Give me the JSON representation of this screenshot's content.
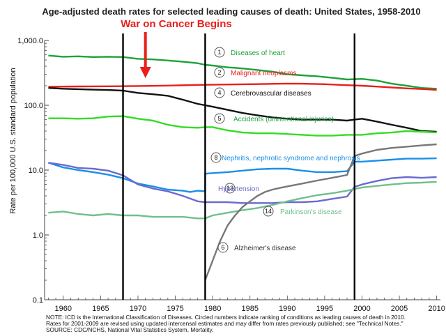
{
  "chart_data": {
    "type": "line",
    "title": "Age-adjusted death rates for selected leading causes of death: United States, 1958-2010",
    "annotation": "War on Cancer Begins",
    "ylabel": "Rate per 100,000 U.S. standard population",
    "xlabel": "",
    "xlim": [
      1957.5,
      2010.5
    ],
    "ylim": [
      0.1,
      1000
    ],
    "yscale": "log",
    "x_ticks": [
      1960,
      1965,
      1970,
      1975,
      1980,
      1985,
      1990,
      1995,
      2000,
      2005,
      2010
    ],
    "y_ticks": [
      {
        "value": 1000,
        "label": "1,000.0"
      },
      {
        "value": 100,
        "label": "100.0"
      },
      {
        "value": 10,
        "label": "10.0"
      },
      {
        "value": 1,
        "label": "1.0"
      },
      {
        "value": 0.1,
        "label": "0.1"
      }
    ],
    "vlines": [
      1968,
      1979,
      1999
    ],
    "arrow_year": 1971,
    "series": [
      {
        "name": "Diseases of heart",
        "rank": "1",
        "color": "#1ea23c",
        "x": [
          1958,
          1960,
          1962,
          1964,
          1966,
          1968,
          1970,
          1972,
          1974,
          1976,
          1978,
          1979,
          1980,
          1982,
          1984,
          1986,
          1988,
          1990,
          1992,
          1994,
          1996,
          1998,
          2000,
          2002,
          2004,
          2006,
          2008,
          2010
        ],
        "y": [
          585,
          560,
          568,
          555,
          560,
          555,
          520,
          510,
          490,
          470,
          445,
          420,
          410,
          385,
          370,
          350,
          330,
          300,
          290,
          280,
          265,
          250,
          255,
          240,
          215,
          200,
          185,
          180
        ]
      },
      {
        "name": "Malignant neoplasms",
        "rank": "2",
        "color": "#e8201b",
        "x": [
          1958,
          1962,
          1966,
          1970,
          1974,
          1978,
          1982,
          1986,
          1990,
          1992,
          1995,
          1998,
          2000,
          2002,
          2004,
          2006,
          2008,
          2010
        ],
        "y": [
          193,
          195,
          196,
          198,
          201,
          206,
          209,
          212,
          216,
          215,
          211,
          204,
          200,
          194,
          188,
          182,
          178,
          173
        ]
      },
      {
        "name": "Cerebrovascular diseases",
        "rank": "4",
        "color": "#111111",
        "x": [
          1958,
          1960,
          1962,
          1964,
          1966,
          1968,
          1970,
          1972,
          1974,
          1976,
          1978,
          1979,
          1980,
          1982,
          1984,
          1986,
          1988,
          1990,
          1992,
          1994,
          1996,
          1998,
          1999,
          2000,
          2002,
          2004,
          2006,
          2008,
          2010
        ],
        "y": [
          185,
          180,
          177,
          174,
          172,
          168,
          155,
          148,
          140,
          122,
          105,
          100,
          95,
          85,
          76,
          70,
          65,
          62,
          60,
          60,
          60,
          58,
          60,
          62,
          56,
          50,
          45,
          40,
          39
        ]
      },
      {
        "name": "Accidents (unintentional injuries)",
        "rank": "5",
        "color": "#33dd22",
        "x": [
          1958,
          1960,
          1962,
          1964,
          1966,
          1968,
          1970,
          1972,
          1974,
          1976,
          1978,
          1979,
          1980,
          1982,
          1984,
          1986,
          1988,
          1990,
          1992,
          1994,
          1996,
          1998,
          2000,
          2002,
          2004,
          2006,
          2008,
          2010
        ],
        "y": [
          63,
          63,
          62,
          63,
          67,
          68,
          62,
          58,
          50,
          46,
          45,
          46,
          46,
          41,
          38,
          37,
          37,
          36,
          35,
          34,
          34,
          35,
          35,
          37,
          38,
          40,
          39,
          38
        ]
      },
      {
        "name": "Nephritis, nephrotic syndrome and nephrosis",
        "rank": "8",
        "color": "#1b8fe8",
        "x": [
          1958,
          1960,
          1962,
          1964,
          1966,
          1968,
          1970,
          1972,
          1974,
          1976,
          1977,
          1978,
          1979,
          1979.01,
          1980,
          1982,
          1984,
          1986,
          1988,
          1990,
          1992,
          1994,
          1996,
          1998,
          1999,
          2000,
          2002,
          2004,
          2006,
          2008,
          2010
        ],
        "y": [
          13,
          11,
          10,
          9.3,
          8.5,
          7.5,
          6.2,
          5.6,
          5.0,
          4.8,
          4.6,
          4.8,
          4.7,
          8.8,
          9.0,
          9.3,
          9.8,
          10.3,
          10.5,
          10.5,
          9.8,
          9.3,
          9.3,
          9.6,
          13.5,
          13.5,
          14,
          14.5,
          15,
          15,
          15.2
        ]
      },
      {
        "name": "Hypertension",
        "rank": "13",
        "color": "#6a6ad0",
        "x": [
          1958,
          1960,
          1962,
          1964,
          1966,
          1968,
          1970,
          1972,
          1974,
          1976,
          1978,
          1979,
          1980,
          1982,
          1984,
          1986,
          1988,
          1990,
          1992,
          1994,
          1996,
          1998,
          1999,
          2000,
          2002,
          2004,
          2006,
          2008,
          2010
        ],
        "y": [
          13,
          12,
          10.8,
          10.5,
          9.8,
          8.3,
          6.0,
          5.2,
          4.7,
          4.0,
          3.3,
          3.2,
          3.2,
          3.2,
          3.1,
          3.1,
          3.1,
          3.2,
          3.2,
          3.3,
          3.6,
          3.9,
          5.5,
          6.0,
          6.8,
          7.5,
          7.8,
          7.6,
          7.8
        ]
      },
      {
        "name": "Parkinson's disease",
        "rank": "14",
        "color": "#6fc08b",
        "x": [
          1958,
          1960,
          1962,
          1964,
          1966,
          1968,
          1970,
          1972,
          1974,
          1976,
          1978,
          1979,
          1980,
          1982,
          1984,
          1986,
          1988,
          1990,
          1992,
          1994,
          1996,
          1998,
          2000,
          2002,
          2004,
          2006,
          2008,
          2010
        ],
        "y": [
          2.2,
          2.3,
          2.1,
          2.0,
          2.1,
          2.0,
          2.0,
          1.9,
          1.9,
          1.9,
          1.8,
          1.8,
          2.0,
          2.2,
          2.4,
          2.6,
          2.9,
          3.3,
          3.7,
          4.1,
          4.4,
          4.8,
          5.4,
          5.7,
          6.0,
          6.3,
          6.4,
          6.6
        ]
      },
      {
        "name": "Alzheimer's disease",
        "rank": "6",
        "color": "#777777",
        "x": [
          1979,
          1980,
          1981,
          1982,
          1983,
          1984,
          1985,
          1986,
          1987,
          1988,
          1989,
          1990,
          1992,
          1994,
          1996,
          1998,
          1999,
          2000,
          2002,
          2004,
          2006,
          2008,
          2010
        ],
        "y": [
          0.2,
          0.4,
          0.8,
          1.4,
          2.0,
          2.7,
          3.3,
          4.0,
          4.6,
          5.0,
          5.3,
          5.6,
          6.2,
          6.9,
          7.6,
          8.4,
          16.5,
          18,
          20.5,
          22,
          23,
          24,
          25
        ]
      }
    ],
    "notes": [
      "NOTE: ICD is the International Classification of Diseases. Circled numbers indicate ranking of conditions as leading causes of death in 2010.",
      "Rates for 2001-2009 are revised using updated intercensal estimates and may differ from rates previously published; see \"Technical Notes.\"",
      "SOURCE: CDC/NCHS, National Vital Statistics System, Mortality."
    ]
  }
}
